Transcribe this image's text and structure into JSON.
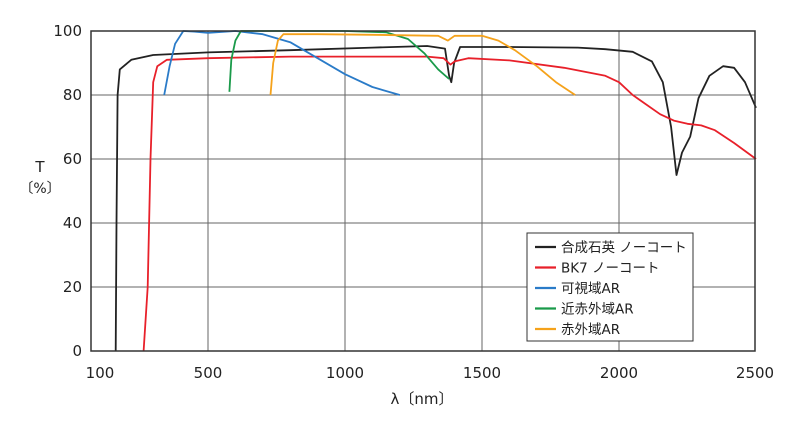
{
  "chart_data": {
    "type": "line",
    "xlabel": "λ〔nm〕",
    "ylabel": "T",
    "ylabel_unit": "〔%〕",
    "xlim": [
      75,
      2500
    ],
    "ylim": [
      0,
      100
    ],
    "xticks": [
      100,
      500,
      1000,
      1500,
      2000,
      2500
    ],
    "yticks": [
      0,
      20,
      40,
      60,
      80,
      100
    ],
    "grid": true,
    "legend_position": "lower-right",
    "series": [
      {
        "name": "合成石英 ノーコート",
        "color": "#222222",
        "points": [
          [
            163,
            0
          ],
          [
            166,
            40
          ],
          [
            170,
            80
          ],
          [
            178,
            88
          ],
          [
            220,
            91
          ],
          [
            300,
            92.5
          ],
          [
            500,
            93.3
          ],
          [
            800,
            94
          ],
          [
            1100,
            94.8
          ],
          [
            1300,
            95.3
          ],
          [
            1365,
            94.5
          ],
          [
            1380,
            86
          ],
          [
            1388,
            84
          ],
          [
            1398,
            90
          ],
          [
            1420,
            95
          ],
          [
            1600,
            95
          ],
          [
            1850,
            94.8
          ],
          [
            1950,
            94.3
          ],
          [
            2050,
            93.5
          ],
          [
            2120,
            90.5
          ],
          [
            2160,
            84
          ],
          [
            2190,
            70
          ],
          [
            2210,
            55
          ],
          [
            2230,
            62
          ],
          [
            2260,
            67
          ],
          [
            2290,
            79
          ],
          [
            2330,
            86
          ],
          [
            2380,
            89
          ],
          [
            2420,
            88.5
          ],
          [
            2460,
            84
          ],
          [
            2500,
            76
          ]
        ]
      },
      {
        "name": "BK7 ノーコート",
        "color": "#e8202a",
        "points": [
          [
            265,
            0
          ],
          [
            280,
            20
          ],
          [
            290,
            60
          ],
          [
            300,
            84
          ],
          [
            315,
            89
          ],
          [
            350,
            91
          ],
          [
            500,
            91.5
          ],
          [
            800,
            92
          ],
          [
            1100,
            92
          ],
          [
            1300,
            92
          ],
          [
            1360,
            91.5
          ],
          [
            1385,
            89.5
          ],
          [
            1400,
            90.5
          ],
          [
            1450,
            91.5
          ],
          [
            1600,
            90.8
          ],
          [
            1800,
            88.5
          ],
          [
            1950,
            86
          ],
          [
            2000,
            84
          ],
          [
            2050,
            80
          ],
          [
            2100,
            77
          ],
          [
            2150,
            74
          ],
          [
            2200,
            72
          ],
          [
            2250,
            71
          ],
          [
            2300,
            70.5
          ],
          [
            2350,
            69
          ],
          [
            2420,
            65
          ],
          [
            2500,
            60
          ]
        ]
      },
      {
        "name": "可視域AR",
        "color": "#2a7bc8",
        "points": [
          [
            340,
            80
          ],
          [
            360,
            89
          ],
          [
            380,
            96
          ],
          [
            410,
            100
          ],
          [
            450,
            99.8
          ],
          [
            500,
            99.4
          ],
          [
            600,
            100
          ],
          [
            700,
            99
          ],
          [
            800,
            96.5
          ],
          [
            900,
            91.5
          ],
          [
            1000,
            86.5
          ],
          [
            1100,
            82.5
          ],
          [
            1200,
            80
          ]
        ]
      },
      {
        "name": "近赤外域AR",
        "color": "#1a9a4a",
        "points": [
          [
            578,
            81
          ],
          [
            585,
            91
          ],
          [
            600,
            97
          ],
          [
            620,
            100
          ],
          [
            800,
            100
          ],
          [
            1000,
            100
          ],
          [
            1150,
            99.6
          ],
          [
            1230,
            97.5
          ],
          [
            1290,
            93
          ],
          [
            1340,
            88
          ],
          [
            1380,
            85
          ]
        ]
      },
      {
        "name": "赤外域AR",
        "color": "#f5a21b",
        "points": [
          [
            728,
            80
          ],
          [
            738,
            90
          ],
          [
            755,
            97
          ],
          [
            775,
            99
          ],
          [
            900,
            99
          ],
          [
            1100,
            98.8
          ],
          [
            1340,
            98.5
          ],
          [
            1375,
            97
          ],
          [
            1400,
            98.5
          ],
          [
            1500,
            98.5
          ],
          [
            1560,
            97
          ],
          [
            1620,
            94
          ],
          [
            1700,
            89
          ],
          [
            1770,
            84
          ],
          [
            1840,
            80
          ]
        ]
      }
    ]
  }
}
